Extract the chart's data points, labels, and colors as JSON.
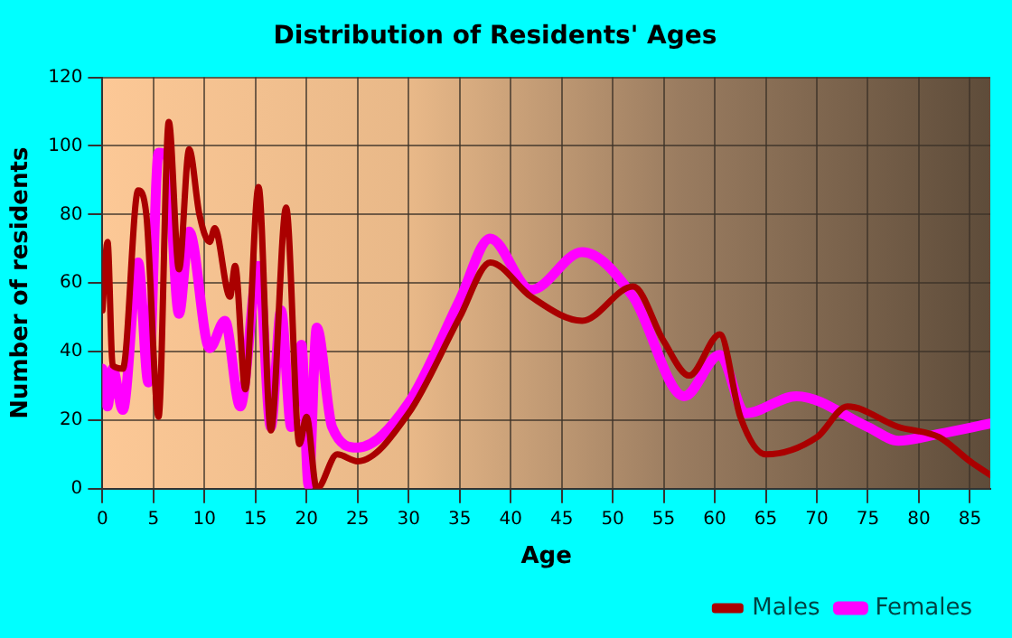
{
  "chart_data": {
    "type": "line",
    "title": "Distribution of Residents' Ages",
    "xlabel": "Age",
    "ylabel": "Number of residents",
    "xlim": [
      0,
      87
    ],
    "xticks": [
      0,
      5,
      10,
      15,
      20,
      25,
      30,
      35,
      40,
      45,
      50,
      55,
      60,
      65,
      70,
      75,
      80,
      85
    ],
    "ylim": [
      0,
      120
    ],
    "yticks": [
      0,
      20,
      40,
      60,
      80,
      100,
      120
    ],
    "grid": true,
    "legend": "bottom right",
    "marker": "none",
    "line_style": "solid",
    "series": [
      {
        "name": "Males",
        "color": "#aa0000",
        "x": [
          0,
          0.5,
          1,
          2,
          3.5,
          4.3,
          5.5,
          6.5,
          7.5,
          8.5,
          9.5,
          10.5,
          11,
          12.5,
          13,
          14,
          15.3,
          16.5,
          18,
          19.3,
          20,
          21,
          23,
          25,
          30,
          35,
          38,
          42,
          47,
          52,
          55,
          57.5,
          60.5,
          62.5,
          65,
          70,
          73,
          78,
          82,
          85,
          87
        ],
        "values": [
          52,
          72,
          36,
          35,
          87,
          80,
          21,
          107,
          64,
          99,
          80,
          72,
          76,
          56,
          65,
          29,
          88,
          17,
          82,
          13,
          21,
          0,
          10,
          8,
          22,
          50,
          66,
          56,
          49,
          59,
          43,
          33,
          45,
          21,
          10,
          15,
          24,
          18,
          15,
          8,
          4
        ]
      },
      {
        "name": "Females",
        "color": "#ff00ff",
        "x": [
          0,
          0.5,
          1,
          2,
          3.5,
          4.5,
          5.5,
          6.3,
          7.5,
          8.5,
          10.5,
          12,
          13.5,
          15.3,
          16.5,
          17.5,
          18.5,
          19.5,
          20.2,
          21,
          22.5,
          25,
          30,
          35,
          38,
          42,
          47,
          52,
          57,
          60.5,
          63,
          68,
          75,
          78,
          82,
          87
        ],
        "values": [
          35,
          24,
          35,
          23,
          66,
          31,
          98,
          97,
          51,
          75,
          41,
          49,
          24,
          65,
          18,
          52,
          18,
          42,
          1,
          47,
          18,
          12,
          25,
          55,
          73,
          58,
          69,
          56,
          27,
          39,
          22,
          27,
          18,
          14,
          16,
          19
        ]
      }
    ]
  }
}
